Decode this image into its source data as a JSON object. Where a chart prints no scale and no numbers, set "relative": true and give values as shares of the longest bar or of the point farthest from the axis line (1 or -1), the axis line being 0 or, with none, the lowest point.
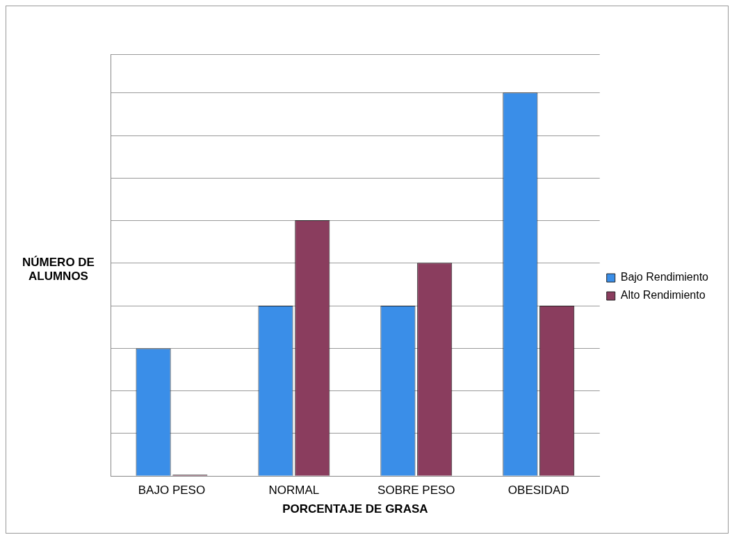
{
  "chart_data": {
    "type": "bar",
    "relative": true,
    "xlabel": "PORCENTAJE DE GRASA",
    "ylabel": "NÚMERO DE ALUMNOS",
    "categories": [
      "BAJO PESO",
      "NORMAL",
      "SOBRE PESO",
      "OBESIDAD"
    ],
    "series": [
      {
        "name": "Bajo Rendimiento",
        "color": "#3a8ee8",
        "values": [
          0.333,
          0.444,
          0.444,
          1
        ]
      },
      {
        "name": "Alto Rendimiento",
        "color": "#8a3d5e",
        "values": [
          0,
          0.667,
          0.556,
          0.444
        ]
      }
    ],
    "grid": "y",
    "legend": "right"
  }
}
